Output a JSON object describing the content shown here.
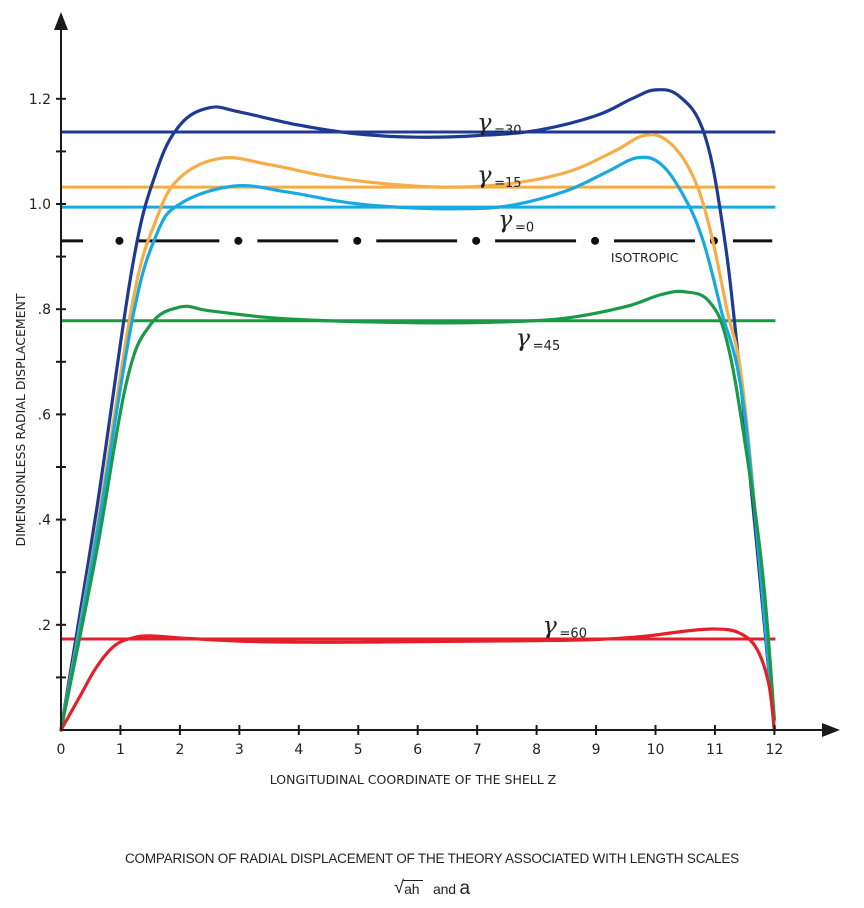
{
  "chart_data": {
    "type": "line",
    "title": "",
    "xlabel": "LONGITUDINAL COORDINATE OF THE SHELL Z",
    "ylabel": "DIMENSIONLESS RADIAL DISPLACEMENT",
    "xlim": [
      0,
      13.2
    ],
    "ylim": [
      0,
      1.35
    ],
    "x_ticks": [
      0,
      1,
      2,
      3,
      4,
      5,
      6,
      7,
      8,
      9,
      10,
      11,
      12
    ],
    "x_tick_labels": [
      "0",
      "1",
      "2",
      "3",
      "4",
      "5",
      "6",
      "7",
      "8",
      "9",
      "10",
      "11",
      "12"
    ],
    "y_ticks": [
      0.1,
      0.2,
      0.3,
      0.4,
      0.5,
      0.6,
      0.7,
      0.8,
      0.9,
      1.0,
      1.1,
      1.2
    ],
    "y_tick_labels": [
      {
        "value": 0.2,
        "label": ".2"
      },
      {
        "value": 0.4,
        "label": ".4"
      },
      {
        "value": 0.6,
        "label": ".6"
      },
      {
        "value": 0.8,
        "label": ".8"
      },
      {
        "value": 1.0,
        "label": "1.0"
      },
      {
        "value": 1.2,
        "label": "1.2"
      }
    ],
    "grid": false,
    "legend": "none (inline labels)",
    "reference_lines": [
      {
        "name": "gamma-30-constant",
        "value": 1.137,
        "color": "#1f3a93",
        "style": "solid"
      },
      {
        "name": "gamma-15-constant",
        "value": 1.032,
        "color": "#f5ad47",
        "style": "solid"
      },
      {
        "name": "gamma-0-constant",
        "value": 0.994,
        "color": "#19a9e1",
        "style": "solid"
      },
      {
        "name": "isotropic",
        "value": 0.93,
        "color": "#111111",
        "style": "dash-dot"
      },
      {
        "name": "gamma-45-constant",
        "value": 0.778,
        "color": "#1a9a48",
        "style": "solid"
      },
      {
        "name": "gamma-60-constant",
        "value": 0.173,
        "color": "#e3202a",
        "style": "solid"
      }
    ],
    "series": [
      {
        "name": "γ=30",
        "color": "#1f3a93",
        "x": [
          0,
          0.6,
          1.2,
          1.6,
          2.0,
          2.5,
          3.0,
          4.0,
          5.0,
          6.0,
          7.0,
          8.0,
          9.0,
          9.6,
          10.0,
          10.4,
          10.8,
          11.1,
          11.4,
          12.0
        ],
        "y": [
          0,
          0.42,
          0.88,
          1.06,
          1.15,
          1.183,
          1.175,
          1.15,
          1.133,
          1.127,
          1.13,
          1.14,
          1.168,
          1.2,
          1.217,
          1.205,
          1.14,
          0.98,
          0.7,
          0
        ]
      },
      {
        "name": "γ=15",
        "color": "#f5ad47",
        "x": [
          0,
          0.6,
          1.2,
          1.6,
          2.0,
          2.7,
          3.5,
          4.5,
          5.5,
          6.5,
          7.5,
          8.5,
          9.3,
          9.8,
          10.2,
          10.6,
          10.9,
          11.2,
          11.5,
          12.0
        ],
        "y": [
          0,
          0.38,
          0.81,
          0.97,
          1.05,
          1.087,
          1.075,
          1.052,
          1.038,
          1.032,
          1.038,
          1.06,
          1.1,
          1.13,
          1.12,
          1.06,
          0.96,
          0.8,
          0.62,
          0
        ]
      },
      {
        "name": "γ=0",
        "color": "#19a9e1",
        "x": [
          0,
          0.6,
          1.2,
          1.6,
          2.0,
          2.9,
          3.8,
          4.8,
          5.8,
          6.8,
          7.6,
          8.5,
          9.2,
          9.7,
          10.1,
          10.5,
          10.8,
          11.1,
          11.5,
          12.0
        ],
        "y": [
          0,
          0.37,
          0.78,
          0.94,
          1.0,
          1.034,
          1.023,
          1.003,
          0.993,
          0.991,
          0.998,
          1.025,
          1.062,
          1.088,
          1.075,
          1.01,
          0.93,
          0.8,
          0.6,
          0
        ]
      },
      {
        "name": "γ=45",
        "color": "#1a9a48",
        "x": [
          0,
          0.6,
          1.1,
          1.5,
          2.0,
          2.5,
          3.5,
          4.5,
          5.5,
          6.5,
          7.5,
          8.5,
          9.5,
          10.1,
          10.5,
          10.9,
          11.2,
          11.5,
          11.8,
          12.0
        ],
        "y": [
          0,
          0.34,
          0.66,
          0.77,
          0.804,
          0.797,
          0.784,
          0.778,
          0.775,
          0.774,
          0.776,
          0.783,
          0.805,
          0.828,
          0.833,
          0.815,
          0.74,
          0.55,
          0.3,
          0.02
        ]
      },
      {
        "name": "γ=60",
        "color": "#e3202a",
        "x": [
          0,
          0.3,
          0.6,
          0.9,
          1.2,
          1.5,
          2.0,
          3.0,
          4.0,
          5.0,
          6.0,
          7.0,
          8.0,
          9.0,
          9.8,
          10.5,
          11.0,
          11.4,
          11.7,
          11.9,
          12.0
        ],
        "y": [
          0,
          0.06,
          0.12,
          0.16,
          0.175,
          0.179,
          0.175,
          0.169,
          0.167,
          0.167,
          0.168,
          0.169,
          0.17,
          0.172,
          0.178,
          0.188,
          0.192,
          0.185,
          0.155,
          0.09,
          0
        ]
      }
    ],
    "annotations": [
      {
        "name": "label-gamma-30",
        "symbol": "γ",
        "text": "=30",
        "x": 7.0,
        "y": 1.14
      },
      {
        "name": "label-gamma-15",
        "symbol": "γ",
        "text": "=15",
        "x": 7.0,
        "y": 1.04
      },
      {
        "name": "label-gamma-0",
        "symbol": "γ",
        "text": "=0",
        "x": 7.35,
        "y": 0.955
      },
      {
        "name": "label-isotropic",
        "symbol": "",
        "text": "ISOTROPIC",
        "x": 9.25,
        "y": 0.89
      },
      {
        "name": "label-gamma-45",
        "symbol": "γ",
        "text": "=45",
        "x": 7.65,
        "y": 0.73
      },
      {
        "name": "label-gamma-60",
        "symbol": "γ",
        "text": "=60",
        "x": 8.1,
        "y": 0.183
      }
    ]
  },
  "caption": {
    "line1": "COMPARISON OF RADIAL DISPLACEMENT OF THE THEORY ASSOCIATED WITH LENGTH SCALES",
    "sqrt_symbol": "√",
    "sqrt_term": "ah",
    "and_text": "and",
    "a_term": "a"
  }
}
